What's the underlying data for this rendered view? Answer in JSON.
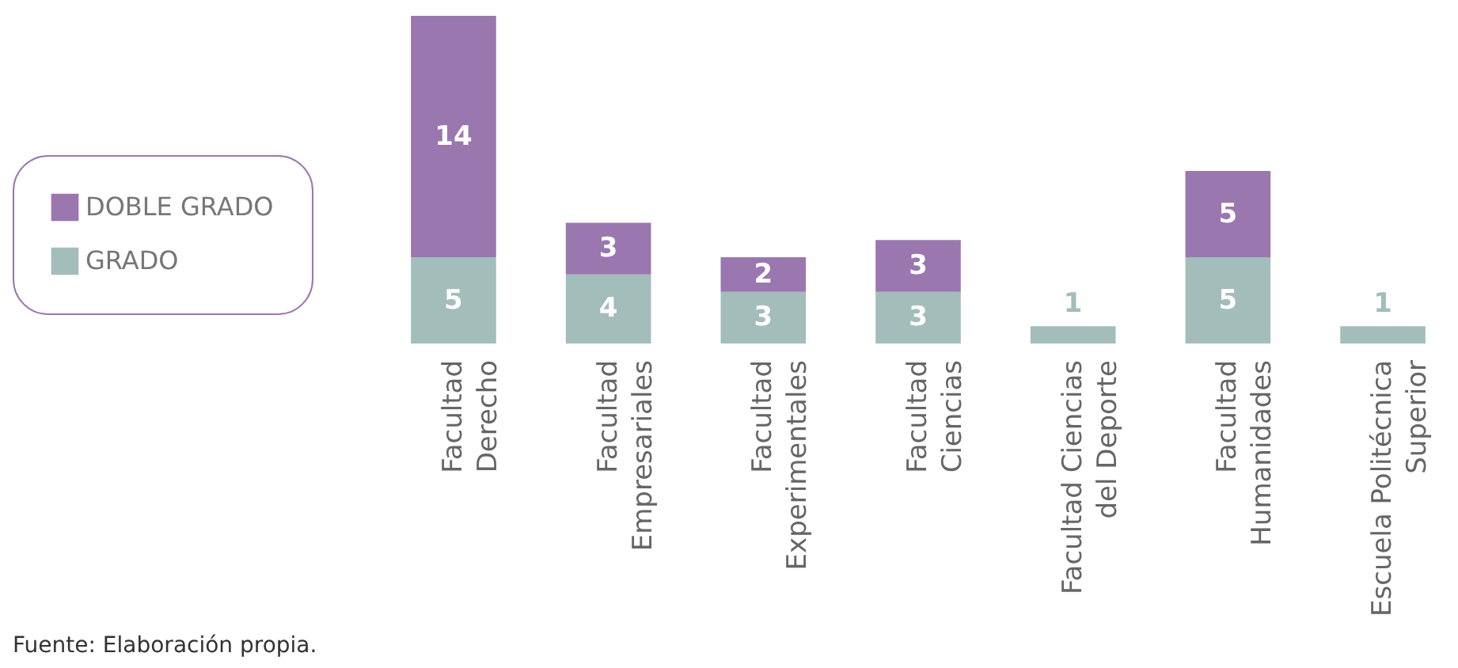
{
  "chart_data": {
    "type": "bar",
    "stacked": true,
    "data_labels": true,
    "legend": "left",
    "grid": false,
    "categories": [
      "Facultad\nDerecho",
      "Facultad\nEmpresariales",
      "Facultad\nExperimentales",
      "Facultad\nCiencias",
      "Facultad Ciencias\ndel Deporte",
      "Facultad\nHumanidades",
      "Escuela Politécnica\nSuperior"
    ],
    "series": [
      {
        "name": "GRADO",
        "color": "#a3bdbb",
        "values": [
          5,
          4,
          3,
          3,
          1,
          5,
          1
        ]
      },
      {
        "name": "DOBLE GRADO",
        "color": "#9b77b0",
        "values": [
          14,
          3,
          2,
          3,
          null,
          5,
          null
        ]
      }
    ],
    "annotations": [
      "Fuente: Elaboración propia."
    ]
  }
}
